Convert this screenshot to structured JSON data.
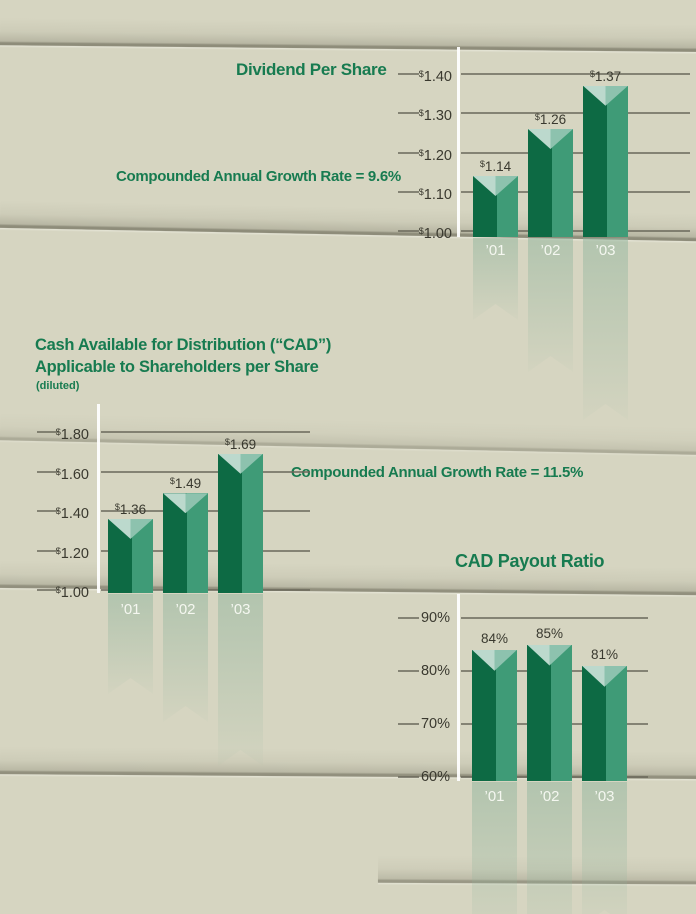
{
  "page": {
    "background": "#d6d5c1"
  },
  "colors": {
    "text_green": "#177b50",
    "bar_face_dark": "#0d6a44",
    "bar_face_light": "#3f9b77",
    "bar_top_left": "#bcd9cd",
    "bar_top_right": "#8dc2ae",
    "grid": "#68675a",
    "axis": "#ffffff",
    "value_text": "#39392f",
    "category_text": "#f8faf3",
    "reflection": "#8fb49c"
  },
  "chart_data": [
    {
      "type": "bar",
      "title": "Dividend Per Share",
      "annotation": "Compounded Annual Growth Rate = 9.6%",
      "categories": [
        "’01",
        "’02",
        "’03"
      ],
      "values": [
        1.14,
        1.26,
        1.37
      ],
      "value_labels": [
        "$1.14",
        "$1.26",
        "$1.37"
      ],
      "y_ticks": [
        {
          "label": "$1.40",
          "value": 1.4
        },
        {
          "label": "$1.30",
          "value": 1.3
        },
        {
          "label": "$1.20",
          "value": 1.2
        },
        {
          "label": "$1.10",
          "value": 1.1
        },
        {
          "label": "$1.00",
          "value": 1.0
        }
      ],
      "ylim": [
        1.0,
        1.45
      ],
      "xlabel": "",
      "ylabel": "",
      "grid": true,
      "legend": null
    },
    {
      "type": "bar",
      "title_lines": [
        "Cash Available for Distribution (“CAD”)",
        "Applicable to Shareholders per Share"
      ],
      "subtitle": "(diluted)",
      "annotation": "Compounded Annual Growth Rate = 11.5%",
      "categories": [
        "’01",
        "’02",
        "’03"
      ],
      "values": [
        1.36,
        1.49,
        1.69
      ],
      "value_labels": [
        "$1.36",
        "$1.49",
        "$1.69"
      ],
      "y_ticks": [
        {
          "label": "$1.80",
          "value": 1.8
        },
        {
          "label": "$1.60",
          "value": 1.6
        },
        {
          "label": "$1.40",
          "value": 1.4
        },
        {
          "label": "$1.20",
          "value": 1.2
        },
        {
          "label": "$1.00",
          "value": 1.0
        }
      ],
      "ylim": [
        1.0,
        1.85
      ],
      "xlabel": "",
      "ylabel": "",
      "grid": true,
      "legend": null
    },
    {
      "type": "bar",
      "title": "CAD Payout Ratio",
      "annotation": null,
      "categories": [
        "’01",
        "’02",
        "’03"
      ],
      "values": [
        84,
        85,
        81
      ],
      "value_labels": [
        "84%",
        "85%",
        "81%"
      ],
      "y_ticks": [
        {
          "label": "90%",
          "value": 90
        },
        {
          "label": "80%",
          "value": 80
        },
        {
          "label": "70%",
          "value": 70
        },
        {
          "label": "60%",
          "value": 60
        }
      ],
      "ylim": [
        60,
        93
      ],
      "xlabel": "",
      "ylabel": "",
      "grid": true,
      "legend": null
    }
  ]
}
